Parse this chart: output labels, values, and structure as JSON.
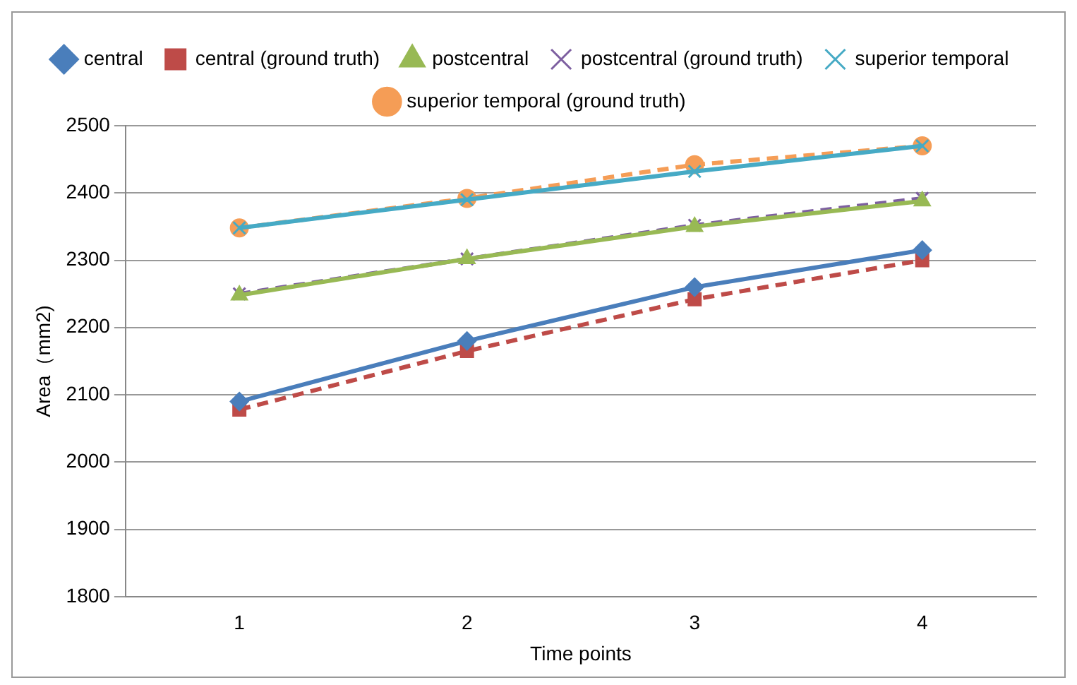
{
  "chart_data": {
    "type": "line",
    "xlabel": "Time points",
    "ylabel": "Area（mm2)",
    "categories": [
      "1",
      "2",
      "3",
      "4"
    ],
    "series": [
      {
        "name": "central",
        "color": "#4a7ebb",
        "marker": "diamond",
        "line_style": "solid",
        "values": [
          2090,
          2180,
          2260,
          2315
        ]
      },
      {
        "name": "central (ground truth)",
        "color": "#be4b48",
        "marker": "square",
        "line_style": "dashed",
        "values": [
          2078,
          2165,
          2242,
          2300
        ]
      },
      {
        "name": "postcentral",
        "color": "#98b954",
        "marker": "triangle",
        "line_style": "solid",
        "values": [
          2248,
          2302,
          2350,
          2388
        ]
      },
      {
        "name": "postcentral (ground truth)",
        "color": "#7d5fa0",
        "marker": "cross",
        "line_style": "dashed",
        "values": [
          2250,
          2302,
          2352,
          2392
        ]
      },
      {
        "name": "superior temporal",
        "color": "#46aac5",
        "marker": "cross",
        "line_style": "solid",
        "values": [
          2348,
          2390,
          2432,
          2470
        ]
      },
      {
        "name": "superior temporal (ground truth)",
        "color": "#f59d56",
        "marker": "circle",
        "line_style": "dashed",
        "values": [
          2348,
          2392,
          2442,
          2470
        ]
      }
    ],
    "ylim": [
      1800,
      2500
    ],
    "yticks": [
      1800,
      1900,
      2000,
      2100,
      2200,
      2300,
      2400,
      2500
    ],
    "grid": "y",
    "legend": "top"
  }
}
